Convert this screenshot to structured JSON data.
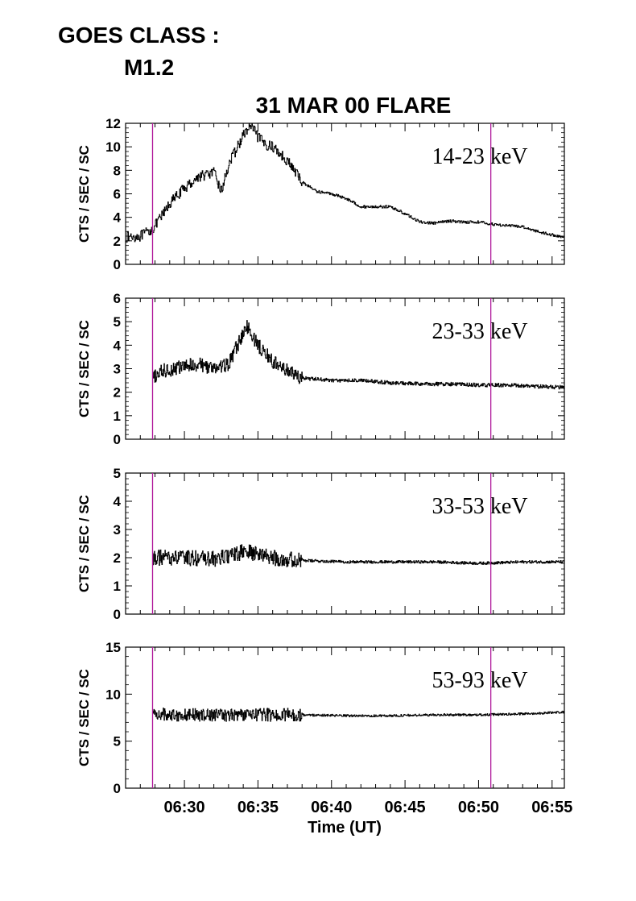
{
  "header": {
    "goes_label": "GOES CLASS :",
    "goes_value": "M1.2"
  },
  "chart_data": {
    "type": "line",
    "title": "31 MAR 00 FLARE",
    "xlabel": "Time (UT)",
    "x_ticks": [
      "06:30",
      "06:35",
      "06:40",
      "06:45",
      "06:50",
      "06:55"
    ],
    "xlim": [
      "06:26:00",
      "06:55:50"
    ],
    "vertical_markers": [
      "06:27:50",
      "06:50:50"
    ],
    "marker_color": "#b0199b",
    "panels": [
      {
        "name": "14-23 keV",
        "ylabel": "CTS / SEC / SC",
        "ylim": [
          0,
          12
        ],
        "y_ticks": [
          "0",
          "2",
          "4",
          "6",
          "8",
          "10",
          "12"
        ],
        "x": [
          "06:26:00",
          "06:27:00",
          "06:27:50",
          "06:28:30",
          "06:29:00",
          "06:30:00",
          "06:31:00",
          "06:32:00",
          "06:32:30",
          "06:33:00",
          "06:34:00",
          "06:34:30",
          "06:35:00",
          "06:35:30",
          "06:36:00",
          "06:37:00",
          "06:38:00",
          "06:39:00",
          "06:40:00",
          "06:41:00",
          "06:42:00",
          "06:43:00",
          "06:44:00",
          "06:45:00",
          "06:46:00",
          "06:47:00",
          "06:48:00",
          "06:49:00",
          "06:50:00",
          "06:51:00",
          "06:52:00",
          "06:53:00",
          "06:54:00",
          "06:55:00",
          "06:55:50"
        ],
        "y": [
          2.3,
          2.4,
          3.0,
          4.2,
          5.2,
          6.5,
          7.5,
          7.8,
          6.2,
          8.5,
          11.0,
          11.8,
          10.8,
          10.2,
          10.0,
          8.8,
          7.0,
          6.2,
          6.0,
          5.6,
          4.9,
          4.9,
          4.9,
          4.3,
          3.6,
          3.5,
          3.7,
          3.6,
          3.6,
          3.4,
          3.3,
          3.2,
          2.8,
          2.5,
          2.3
        ]
      },
      {
        "name": "23-33 keV",
        "ylabel": "CTS / SEC / SC",
        "ylim": [
          0,
          6
        ],
        "y_ticks": [
          "0",
          "1",
          "2",
          "3",
          "4",
          "5",
          "6"
        ],
        "x": [
          "06:27:50",
          "06:28:30",
          "06:30:00",
          "06:31:00",
          "06:32:00",
          "06:33:00",
          "06:33:45",
          "06:34:15",
          "06:35:00",
          "06:36:00",
          "06:37:00",
          "06:38:00",
          "06:40:00",
          "06:42:00",
          "06:44:00",
          "06:46:00",
          "06:48:00",
          "06:50:00",
          "06:52:00",
          "06:54:00",
          "06:55:50"
        ],
        "y": [
          2.6,
          2.9,
          3.1,
          3.2,
          3.0,
          3.2,
          4.2,
          4.8,
          4.0,
          3.3,
          2.9,
          2.6,
          2.5,
          2.5,
          2.4,
          2.35,
          2.35,
          2.3,
          2.3,
          2.25,
          2.2
        ]
      },
      {
        "name": "33-53 keV",
        "ylabel": "CTS / SEC / SC",
        "ylim": [
          0,
          5
        ],
        "y_ticks": [
          "0",
          "1",
          "2",
          "3",
          "4",
          "5"
        ],
        "x": [
          "06:27:50",
          "06:30:00",
          "06:32:00",
          "06:33:00",
          "06:34:00",
          "06:35:00",
          "06:36:00",
          "06:38:00",
          "06:41:00",
          "06:44:00",
          "06:47:00",
          "06:50:00",
          "06:53:00",
          "06:55:50"
        ],
        "y": [
          2.0,
          2.0,
          1.95,
          2.05,
          2.2,
          2.15,
          2.0,
          1.9,
          1.85,
          1.85,
          1.85,
          1.8,
          1.85,
          1.85
        ]
      },
      {
        "name": "53-93 keV",
        "ylabel": "CTS / SEC / SC",
        "ylim": [
          0,
          15
        ],
        "y_ticks": [
          "0",
          "5",
          "10",
          "15"
        ],
        "x": [
          "06:27:50",
          "06:30:00",
          "06:33:00",
          "06:36:00",
          "06:38:00",
          "06:41:00",
          "06:44:00",
          "06:47:00",
          "06:50:00",
          "06:53:00",
          "06:55:50"
        ],
        "y": [
          7.9,
          7.8,
          7.8,
          7.8,
          7.8,
          7.7,
          7.7,
          7.8,
          7.8,
          7.9,
          8.1
        ]
      }
    ]
  }
}
